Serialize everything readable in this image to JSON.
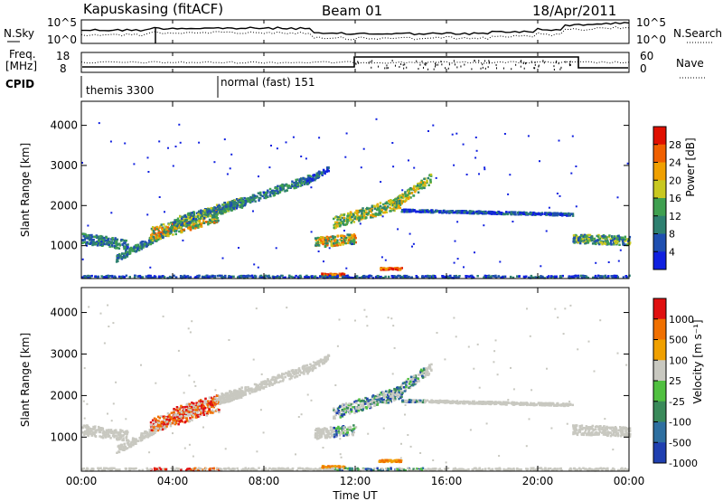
{
  "header": {
    "station": "Kapuskasing (fitACF)",
    "beam": "Beam 01",
    "date": "18/Apr/2011"
  },
  "noise_panel": {
    "left_label": "N.Sky",
    "right_label": "N.Search",
    "left_ticks": [
      "10^5",
      "10^0"
    ],
    "right_ticks": [
      "10^5",
      "10^0"
    ]
  },
  "freq_panel": {
    "left_label_1": "Freq.",
    "left_label_2": "[MHz]",
    "left_ticks": [
      "18",
      "8"
    ],
    "right_label": "Nave",
    "right_ticks": [
      "60",
      "0"
    ]
  },
  "cpid": {
    "label": "CPID",
    "modes": [
      "themis 3300",
      "normal (fast) 151"
    ]
  },
  "colors": {
    "power_scale": [
      "#1020e0",
      "#1f4fb0",
      "#2e8070",
      "#3fa050",
      "#c8c820",
      "#f0a000",
      "#f06000",
      "#e01000"
    ],
    "velocity_scale": [
      "#1f3fb0",
      "#2e6fa0",
      "#3a8a5a",
      "#50c040",
      "#c8c8c0",
      "#f0a000",
      "#f07000",
      "#e01010"
    ]
  },
  "chart_data": [
    {
      "type": "heatmap",
      "title": "",
      "ylabel": "Slant Range [km]",
      "xlabel": "",
      "ylim": [
        180,
        4600
      ],
      "x_ticks": [
        "00:00",
        "04:00",
        "08:00",
        "12:00",
        "16:00",
        "20:00",
        "00:00"
      ],
      "y_ticks": [
        1000,
        2000,
        3000,
        4000
      ],
      "colorbar": {
        "label": "Power [dB]",
        "ticks": [
          "28",
          "24",
          "20",
          "16",
          "12",
          "8",
          "4"
        ]
      }
    },
    {
      "type": "heatmap",
      "title": "",
      "ylabel": "Slant Range [km]",
      "xlabel": "Time UT",
      "ylim": [
        180,
        4600
      ],
      "x_ticks": [
        "00:00",
        "04:00",
        "08:00",
        "12:00",
        "16:00",
        "20:00",
        "00:00"
      ],
      "y_ticks": [
        1000,
        2000,
        3000,
        4000
      ],
      "colorbar": {
        "label": "Velocity [m s⁻¹]",
        "ticks": [
          "1000",
          "500",
          "100",
          "25",
          "-25",
          "-100",
          "-500",
          "-1000"
        ]
      }
    }
  ]
}
